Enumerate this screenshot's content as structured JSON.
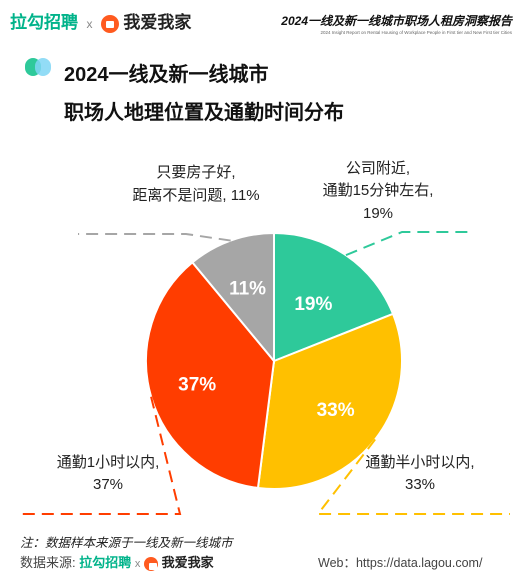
{
  "header": {
    "brand_left": "拉勾招聘",
    "separator": "x",
    "brand_right": "我爱我家",
    "report_title": "2024一线及新一线城市职场人租房洞察报告",
    "report_subtitle": "2024 Insight Report on Rental Housing of Workplace People in First tier and New First tier Cities"
  },
  "chart_data": {
    "type": "pie",
    "title_line1": "2024一线及新一线城市",
    "title_line2": "职场人地理位置及通勤时间分布",
    "slices": [
      {
        "label_line1": "公司附近,",
        "label_line2": "通勤15分钟左右,",
        "label_line3": "19%",
        "value": 19,
        "inner": "19%",
        "color": "#2ec99a"
      },
      {
        "label_line1": "通勤半小时以内,",
        "label_line2": "33%",
        "value": 33,
        "inner": "33%",
        "color": "#ffc000"
      },
      {
        "label_line1": "通勤1小时以内,",
        "label_line2": "37%",
        "value": 37,
        "inner": "37%",
        "color": "#ff3d00"
      },
      {
        "label_line1": "只要房子好,",
        "label_line2": "距离不是问题, 11%",
        "value": 11,
        "inner": "11%",
        "color": "#a6a6a6"
      }
    ]
  },
  "footer": {
    "note": "注：数据样本来源于一线及新一线城市",
    "source_label": "数据来源:",
    "source_brand_left": "拉勾招聘",
    "separator": "x",
    "source_brand_right": "我爱我家",
    "web": "Web：https://data.lagou.com/"
  }
}
